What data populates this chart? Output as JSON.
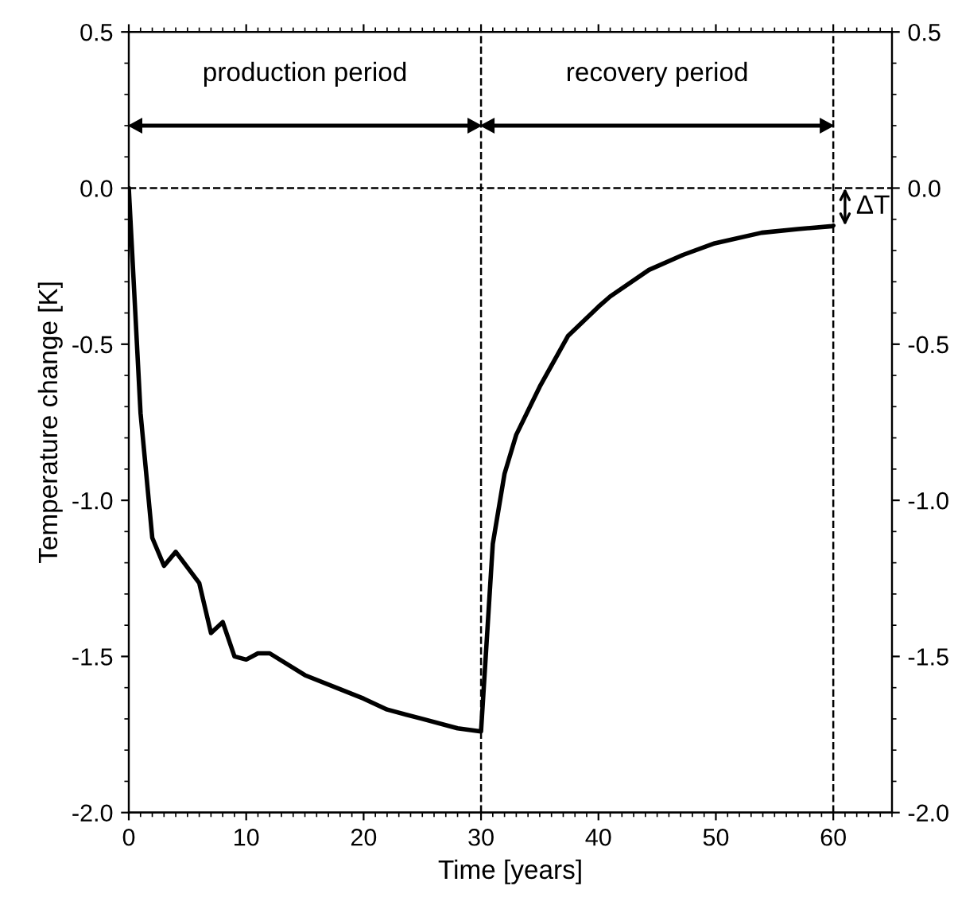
{
  "chart_data": {
    "type": "line",
    "xlabel": "Time [years]",
    "ylabel": "Temperature change [K]",
    "series": [
      {
        "color": "#000000",
        "x": [
          0,
          1,
          2,
          3,
          4,
          6,
          7,
          8,
          9,
          10,
          11,
          12,
          15,
          18,
          20,
          22,
          25,
          28,
          30,
          31,
          32,
          33,
          35,
          37.4,
          40,
          41,
          44.3,
          47.2,
          49.9,
          53.9,
          57,
          59.9,
          60
        ],
        "values": [
          0,
          -0.72,
          -1.12,
          -1.21,
          -1.165,
          -1.265,
          -1.425,
          -1.39,
          -1.5,
          -1.51,
          -1.49,
          -1.49,
          -1.56,
          -1.605,
          -1.635,
          -1.67,
          -1.7,
          -1.73,
          -1.74,
          -1.14,
          -0.915,
          -0.79,
          -0.636,
          -0.474,
          -0.38,
          -0.347,
          -0.262,
          -0.214,
          -0.177,
          -0.143,
          -0.131,
          -0.122,
          -0.12
        ]
      }
    ],
    "xlim": [
      0,
      65
    ],
    "xticks": [
      0,
      10,
      20,
      30,
      40,
      50,
      60
    ],
    "ylim": [
      -2,
      0.5
    ],
    "yticks": [
      {
        "value": -2,
        "label": "-2.0"
      },
      {
        "value": -1.5,
        "label": "-1.5"
      },
      {
        "value": -1,
        "label": "-1.0"
      },
      {
        "value": -0.5,
        "label": "-0.5"
      },
      {
        "value": 0,
        "label": "0.0"
      },
      {
        "value": 0.5,
        "label": "0.5"
      }
    ],
    "y2lim": [
      -2,
      0.5
    ],
    "y2ticks": [
      {
        "value": -2,
        "label": "-2.0"
      },
      {
        "value": -1.5,
        "label": "-1.5"
      },
      {
        "value": -1,
        "label": "-1.0"
      },
      {
        "value": -0.5,
        "label": "-0.5"
      },
      {
        "value": 0,
        "label": "0.0"
      },
      {
        "value": 0.5,
        "label": "0.5"
      }
    ],
    "ref_lines": [
      {
        "axis": "y",
        "value": 0,
        "line_style": "dashed",
        "color": "#000000"
      },
      {
        "axis": "x",
        "value": 30,
        "line_style": "dashed",
        "color": "#000000"
      },
      {
        "axis": "x",
        "value": 60,
        "line_style": "dashed",
        "color": "#000000"
      }
    ],
    "annotations": [
      "production period",
      "recovery period",
      {
        "text": "ΔT",
        "x": 60,
        "y": -0.06
      }
    ],
    "grid": false,
    "legend": false,
    "marker": "none",
    "line_style": "solid"
  }
}
